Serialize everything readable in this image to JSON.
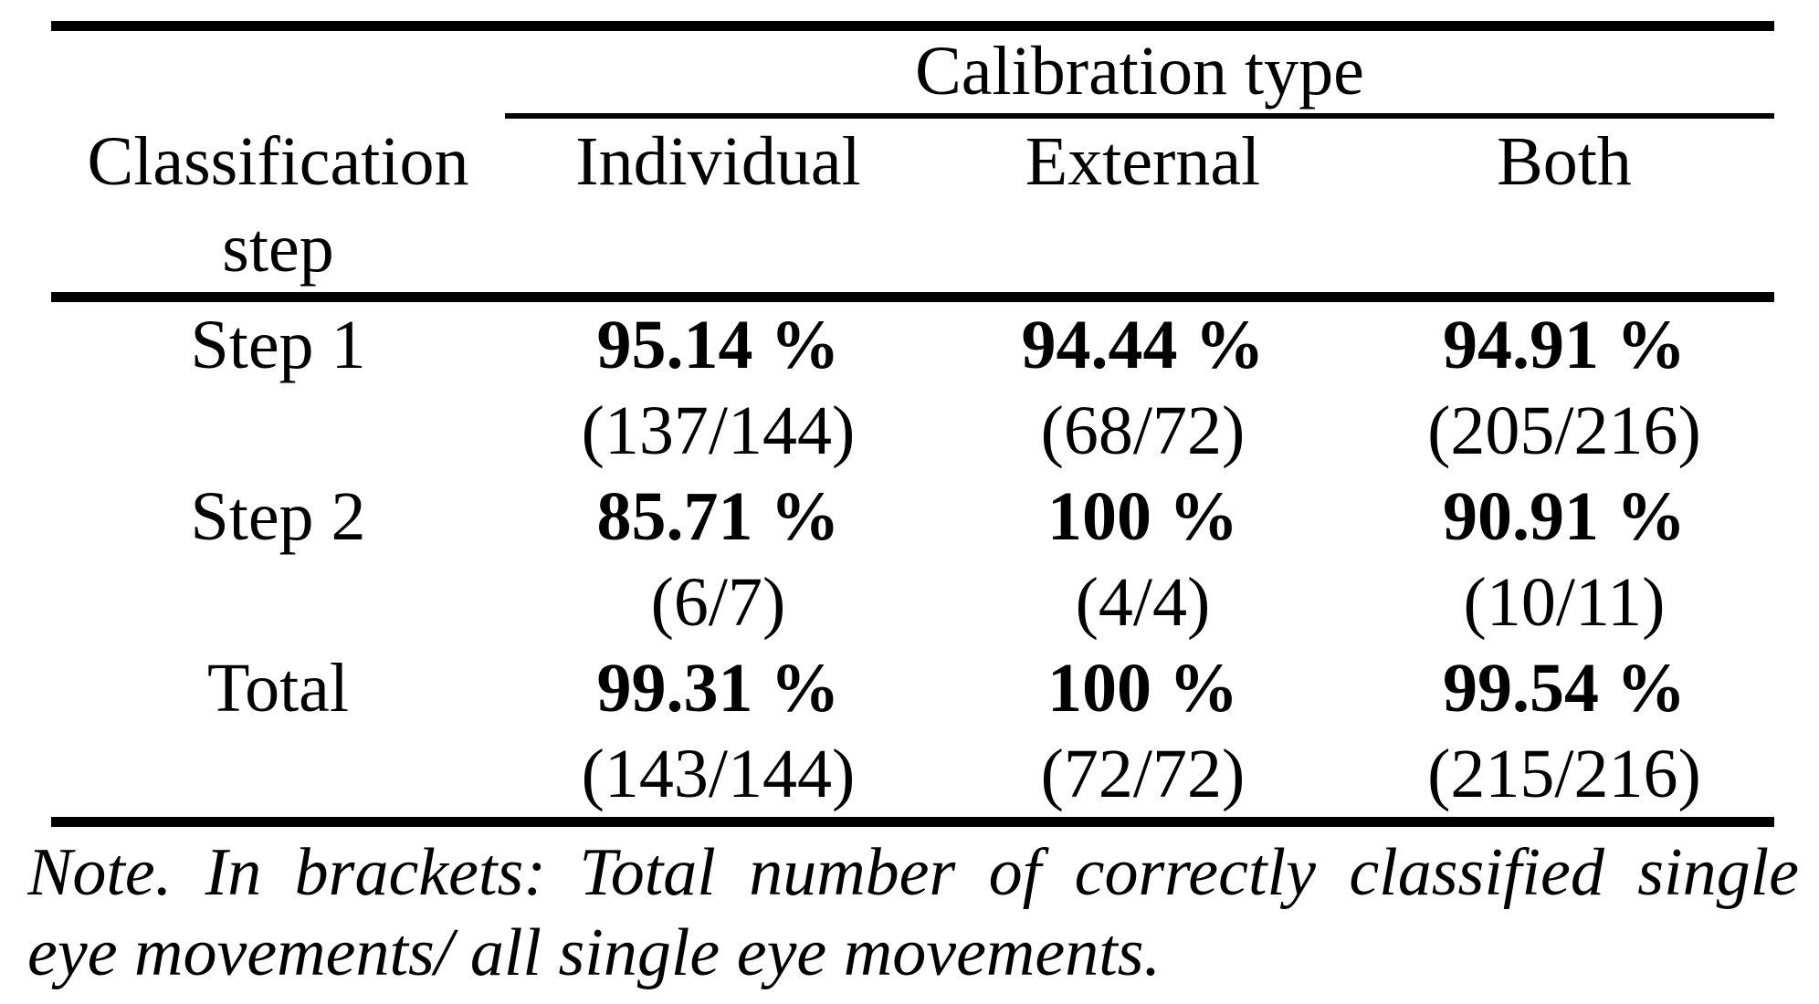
{
  "colors": {
    "text": "#000000",
    "background": "#ffffff",
    "rules": "#000000"
  },
  "table": {
    "col_group_header": "Calibration type",
    "row_header": {
      "line1": "Classification",
      "line2": "step"
    },
    "columns": [
      "Individual",
      "External",
      "Both"
    ],
    "rows": [
      {
        "label": "Step 1",
        "cells": [
          {
            "pct": "95.14 %",
            "frac": "(137/144)"
          },
          {
            "pct": "94.44 %",
            "frac": "(68/72)"
          },
          {
            "pct": "94.91 %",
            "frac": "(205/216)"
          }
        ]
      },
      {
        "label": "Step 2",
        "cells": [
          {
            "pct": "85.71 %",
            "frac": "(6/7)"
          },
          {
            "pct": "100 %",
            "frac": "(4/4)"
          },
          {
            "pct": "90.91 %",
            "frac": "(10/11)"
          }
        ]
      },
      {
        "label": "Total",
        "cells": [
          {
            "pct": "99.31 %",
            "frac": "(143/144)"
          },
          {
            "pct": "100 %",
            "frac": "(72/72)"
          },
          {
            "pct": "99.54 %",
            "frac": "(215/216)"
          }
        ]
      }
    ]
  },
  "note": {
    "line1": "Note. In brackets: Total number of correctly classified single",
    "line2": "eye movements/ all single eye movements."
  },
  "chart_data": {
    "type": "table",
    "title": "",
    "column_group": "Calibration type",
    "columns": [
      "Individual",
      "External",
      "Both"
    ],
    "row_header": "Classification step",
    "rows": [
      {
        "step": "Step 1",
        "values_pct": [
          95.14,
          94.44,
          94.91
        ],
        "fractions": [
          "137/144",
          "68/72",
          "205/216"
        ]
      },
      {
        "step": "Step 2",
        "values_pct": [
          85.71,
          100,
          90.91
        ],
        "fractions": [
          "6/7",
          "4/4",
          "10/11"
        ]
      },
      {
        "step": "Total",
        "values_pct": [
          99.31,
          100,
          99.54
        ],
        "fractions": [
          "143/144",
          "72/72",
          "215/216"
        ]
      }
    ],
    "note": "Note. In brackets: Total number of correctly classified single eye movements/ all single eye movements."
  }
}
